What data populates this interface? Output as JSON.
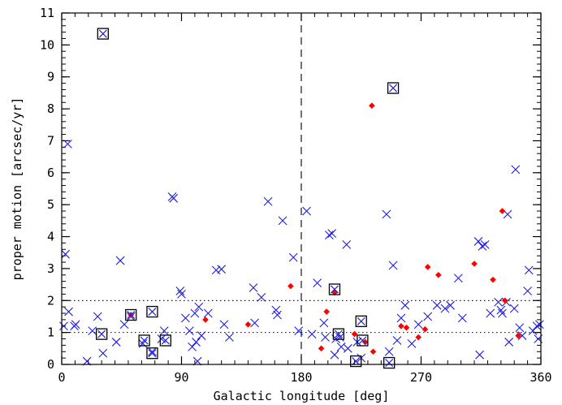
{
  "chart_data": {
    "type": "scatter",
    "title": "",
    "xlabel": "Galactic longitude [deg]",
    "ylabel": "proper motion [arcsec/yr]",
    "xlim": [
      0,
      360
    ],
    "ylim": [
      0,
      11
    ],
    "xticks": [
      0,
      90,
      180,
      270,
      360
    ],
    "xtick_labels": [
      "0",
      "90",
      "180",
      "270",
      "360"
    ],
    "yticks": [
      0,
      1,
      2,
      3,
      4,
      5,
      6,
      7,
      8,
      9,
      10,
      11
    ],
    "ytick_labels": [
      "0",
      "1",
      "2",
      "3",
      "4",
      "5",
      "6",
      "7",
      "8",
      "9",
      "10",
      "11"
    ],
    "minor_x_step": 10,
    "minor_y_step": 0.2,
    "reference_lines": [
      {
        "orientation": "vertical",
        "x": 180,
        "style": "dashed"
      },
      {
        "orientation": "horizontal",
        "y": 1,
        "style": "dotted"
      },
      {
        "orientation": "horizontal",
        "y": 2,
        "style": "dotted"
      }
    ],
    "series": [
      {
        "marker": "cross",
        "color": "#1f1fe0",
        "points": [
          [
            1.5,
            1.2
          ],
          [
            2.8,
            3.45
          ],
          [
            4.5,
            6.9
          ],
          [
            5.2,
            1.65
          ],
          [
            9.5,
            1.2
          ],
          [
            10.5,
            1.25
          ],
          [
            19,
            0.1
          ],
          [
            23,
            1.05
          ],
          [
            27,
            1.5
          ],
          [
            31,
            0.35
          ],
          [
            41,
            0.7
          ],
          [
            44,
            3.25
          ],
          [
            47,
            1.25
          ],
          [
            52,
            1.5
          ],
          [
            61,
            0.65
          ],
          [
            68,
            0.4
          ],
          [
            75,
            0.8
          ],
          [
            77,
            1.05
          ],
          [
            83,
            5.25
          ],
          [
            84,
            5.2
          ],
          [
            89,
            2.3
          ],
          [
            90,
            2.2
          ],
          [
            93,
            1.45
          ],
          [
            96,
            1.05
          ],
          [
            98,
            0.55
          ],
          [
            100,
            1.6
          ],
          [
            101,
            0.7
          ],
          [
            102,
            0.1
          ],
          [
            103,
            1.8
          ],
          [
            105,
            0.9
          ],
          [
            110,
            1.6
          ],
          [
            116,
            2.95
          ],
          [
            120,
            2.98
          ],
          [
            122,
            1.25
          ],
          [
            126,
            0.85
          ],
          [
            144,
            2.4
          ],
          [
            145,
            1.3
          ],
          [
            150,
            2.1
          ],
          [
            155,
            5.1
          ],
          [
            161,
            1.7
          ],
          [
            162,
            1.55
          ],
          [
            166,
            4.5
          ],
          [
            174,
            3.35
          ],
          [
            178,
            1.05
          ],
          [
            184,
            4.8
          ],
          [
            188,
            0.95
          ],
          [
            192,
            2.55
          ],
          [
            197,
            1.3
          ],
          [
            198,
            0.85
          ],
          [
            201,
            4.05
          ],
          [
            203,
            4.1
          ],
          [
            205,
            0.3
          ],
          [
            206,
            0.8
          ],
          [
            209,
            0.85
          ],
          [
            210,
            0.55
          ],
          [
            214,
            3.75
          ],
          [
            215,
            0.5
          ],
          [
            222,
            0.7
          ],
          [
            225,
            0.2
          ],
          [
            244,
            4.7
          ],
          [
            246,
            0.4
          ],
          [
            249,
            3.1
          ],
          [
            252,
            0.75
          ],
          [
            255,
            1.45
          ],
          [
            258,
            1.85
          ],
          [
            263,
            0.65
          ],
          [
            268,
            1.25
          ],
          [
            275,
            1.5
          ],
          [
            282,
            1.85
          ],
          [
            288,
            1.75
          ],
          [
            292,
            1.85
          ],
          [
            298,
            2.7
          ],
          [
            301,
            1.45
          ],
          [
            313,
            3.85
          ],
          [
            314,
            0.3
          ],
          [
            316,
            3.7
          ],
          [
            318,
            3.75
          ],
          [
            322,
            1.6
          ],
          [
            328,
            1.95
          ],
          [
            330,
            1.7
          ],
          [
            331,
            1.6
          ],
          [
            334,
            1.95
          ],
          [
            335,
            4.7
          ],
          [
            336,
            0.7
          ],
          [
            340,
            1.75
          ],
          [
            341,
            6.1
          ],
          [
            344,
            1.15
          ],
          [
            346,
            0.9
          ],
          [
            350,
            2.3
          ],
          [
            351,
            2.95
          ],
          [
            354,
            1.05
          ],
          [
            357,
            1.2
          ],
          [
            358,
            0.8
          ],
          [
            359,
            1.25
          ]
        ]
      },
      {
        "marker": "diamond",
        "color": "#ff0000",
        "points": [
          [
            52,
            1.55
          ],
          [
            108,
            1.4
          ],
          [
            140,
            1.25
          ],
          [
            172,
            2.45
          ],
          [
            195,
            0.5
          ],
          [
            199,
            1.65
          ],
          [
            205,
            2.25
          ],
          [
            220,
            0.95
          ],
          [
            228,
            0.7
          ],
          [
            233,
            8.1
          ],
          [
            234,
            0.4
          ],
          [
            255,
            1.2
          ],
          [
            259,
            1.15
          ],
          [
            268,
            0.85
          ],
          [
            273,
            1.1
          ],
          [
            275,
            3.05
          ],
          [
            283,
            2.8
          ],
          [
            310,
            3.15
          ],
          [
            324,
            2.65
          ],
          [
            331,
            4.8
          ],
          [
            333,
            2.0
          ],
          [
            343,
            0.9
          ]
        ]
      },
      {
        "marker": "boxed-cross",
        "color": "#000000",
        "points": [
          [
            31,
            10.35
          ],
          [
            249,
            8.65
          ],
          [
            30,
            0.95
          ],
          [
            52,
            1.55
          ],
          [
            68,
            1.65
          ],
          [
            62,
            0.75
          ],
          [
            68,
            0.35
          ],
          [
            78,
            0.75
          ],
          [
            205,
            2.35
          ],
          [
            208,
            0.95
          ],
          [
            221,
            0.1
          ],
          [
            225,
            1.35
          ],
          [
            226,
            0.75
          ],
          [
            246,
            0.05
          ]
        ]
      }
    ]
  }
}
